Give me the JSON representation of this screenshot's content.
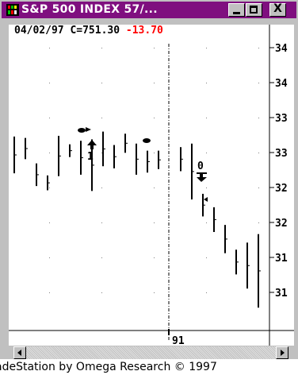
{
  "window": {
    "title": "S&P 500 INDEX 57/...",
    "icon": "tradestation-app-icon",
    "controls": [
      "minimize-icon",
      "maximize-icon",
      "close-icon"
    ],
    "close_glyph": "X",
    "title_bg": "#7f0f7f"
  },
  "chart_header": {
    "date": "04/02/97",
    "close_label": "C=751.30",
    "change": "-13.70",
    "change_color": "#ff0000"
  },
  "chart_data": {
    "type": "bar",
    "title": "",
    "axis_labels": [
      "34",
      "34",
      "33",
      "33",
      "32",
      "32",
      "31",
      "31"
    ],
    "x_marker_label": "91",
    "annotations": [
      "1",
      "0"
    ],
    "grid": "dotted",
    "bars": [
      {
        "high": 753.5,
        "low": 748.3
      },
      {
        "high": 753.3,
        "low": 750.3
      },
      {
        "high": 749.7,
        "low": 746.5
      },
      {
        "high": 748.0,
        "low": 745.9
      },
      {
        "high": 753.6,
        "low": 747.9
      },
      {
        "high": 752.4,
        "low": 750.6
      },
      {
        "high": 752.9,
        "low": 748.1
      },
      {
        "high": 753.1,
        "low": 745.8
      },
      {
        "high": 754.2,
        "low": 749.3
      },
      {
        "high": 752.3,
        "low": 749.0
      },
      {
        "high": 753.9,
        "low": 751.2
      },
      {
        "high": 752.5,
        "low": 748.1
      },
      {
        "high": 751.5,
        "low": 748.4
      },
      {
        "high": 751.5,
        "low": 748.9
      },
      {
        "high": 752.0,
        "low": 748.6
      },
      {
        "high": 752.5,
        "low": 744.6
      },
      {
        "high": 745.4,
        "low": 742.2
      },
      {
        "high": 743.5,
        "low": 740.0
      },
      {
        "high": 741.0,
        "low": 737.0
      },
      {
        "high": 737.5,
        "low": 734.0
      },
      {
        "high": 738.5,
        "low": 732.0
      },
      {
        "high": 739.7,
        "low": 729.3
      },
      {
        "high": 734.7,
        "low": 731.6
      },
      {
        "high": 735.0,
        "low": 732.9
      },
      {
        "high": 735.1,
        "low": 733.7
      }
    ]
  },
  "scrollbar": {
    "left_icon": "scroll-left-arrow-icon",
    "right_icon": "scroll-right-arrow-icon"
  },
  "footer": {
    "text": "adeStation by Omega Research © 1997"
  }
}
